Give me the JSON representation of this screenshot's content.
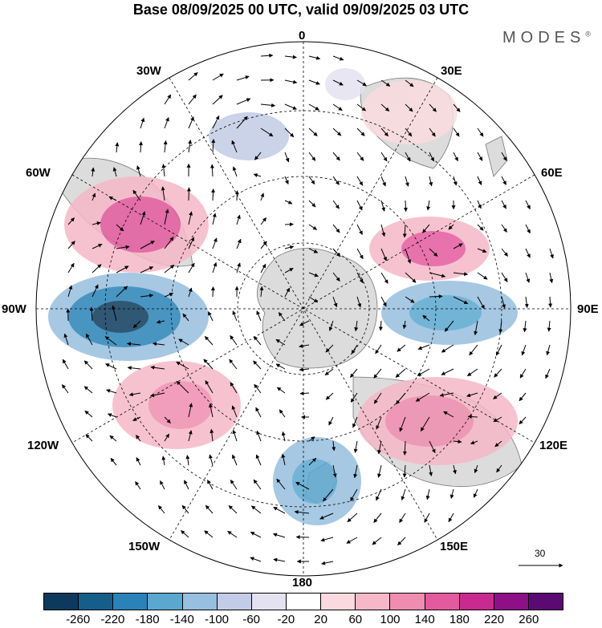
{
  "title": "Base 08/09/2025 00 UTC, valid 09/09/2025 03 UTC",
  "brand": "MODES",
  "brand_mark": "®",
  "labels": {
    "lon_0": "0",
    "lon_30e": "30E",
    "lon_60e": "60E",
    "lon_90e": "90E",
    "lon_120e": "120E",
    "lon_150e": "150E",
    "lon_180": "180",
    "lon_150w": "150W",
    "lon_120w": "120W",
    "lon_90w": "90W",
    "lon_60w": "60W",
    "lon_30w": "30W"
  },
  "reference_vector": "30",
  "colorbar": {
    "colors": [
      "#0d3a5c",
      "#155e8c",
      "#2a83b8",
      "#5aa7d0",
      "#97bfdf",
      "#c3cce6",
      "#e4e2f0",
      "#ffffff",
      "#fadadf",
      "#f6b8c8",
      "#ef8db0",
      "#e45a9e",
      "#c92a8f",
      "#8e0f86",
      "#5b0a73"
    ],
    "ticks": [
      "-260",
      "-220",
      "-180",
      "-140",
      "-100",
      "-60",
      "-20",
      "20",
      "60",
      "100",
      "140",
      "180",
      "220",
      "260"
    ]
  }
}
